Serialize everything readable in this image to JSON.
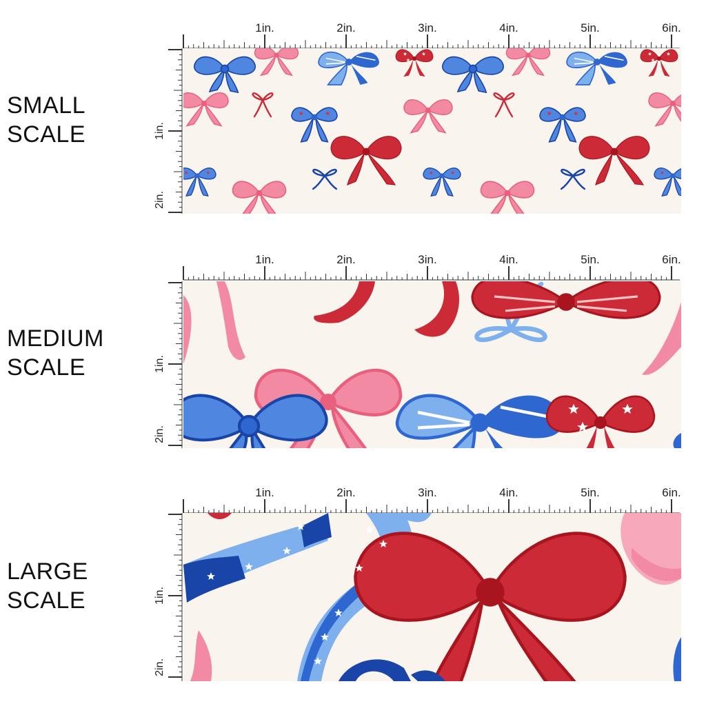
{
  "colors": {
    "background": "#faf4ee",
    "red": "#cc2a36",
    "dark_red": "#a8151f",
    "pink": "#f38aa3",
    "light_pink": "#f7a9bb",
    "blue": "#2f67d0",
    "dark_blue": "#1a45a8",
    "light_blue": "#7fb0ee"
  },
  "panels": [
    {
      "label_line1": "SMALL",
      "label_line2": "SCALE",
      "scale": "small"
    },
    {
      "label_line1": "MEDIUM",
      "label_line2": "SCALE",
      "scale": "medium"
    },
    {
      "label_line1": "LARGE",
      "label_line2": "SCALE",
      "scale": "large"
    }
  ],
  "ruler": {
    "horizontal_labels": [
      "1in.",
      "2in.",
      "3in.",
      "4in.",
      "5in.",
      "6in."
    ],
    "vertical_labels": [
      "1in.",
      "2in."
    ]
  },
  "pattern": {
    "motif": "bow-icon",
    "motifs": [
      "bow-icon",
      "ribbon-icon",
      "star-icon"
    ]
  }
}
